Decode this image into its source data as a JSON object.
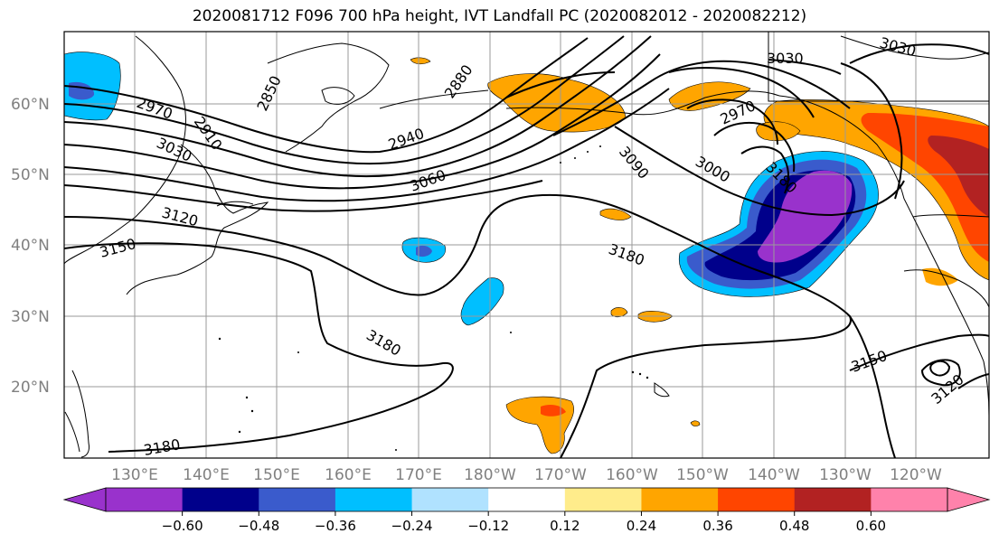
{
  "title": "2020081712 F096 700 hPa height, IVT Landfall PC (2020082012 - 2020082212)",
  "map": {
    "lat_labels": [
      "60°N",
      "50°N",
      "40°N",
      "30°N",
      "20°N"
    ],
    "lon_labels": [
      "130°E",
      "140°E",
      "150°E",
      "160°E",
      "170°E",
      "180°W",
      "170°W",
      "160°W",
      "150°W",
      "140°W",
      "130°W",
      "120°W"
    ],
    "contour_labels": [
      "2970",
      "2910",
      "2850",
      "2880",
      "2940",
      "3030",
      "3060",
      "3120",
      "3150",
      "3180",
      "3090",
      "3000",
      "2970",
      "3030",
      "3030",
      "3180",
      "3180",
      "3180",
      "3150",
      "3120"
    ],
    "colors": {
      "fill_strong_neg": "#9932cc",
      "fill_neg2": "#00008b",
      "fill_neg3": "#3a5bcc",
      "fill_neg4": "#00bfff",
      "fill_neg5": "#b0e2ff",
      "fill_pos1": "#ffec8b",
      "fill_pos2": "#ffa500",
      "fill_pos3": "#ff4500",
      "fill_pos4": "#b22222",
      "fill_pos5": "#ff82ab"
    }
  },
  "colorbar": {
    "ticks": [
      "−0.60",
      "−0.48",
      "−0.36",
      "−0.24",
      "−0.12",
      "0.12",
      "0.24",
      "0.36",
      "0.48",
      "0.60"
    ],
    "colors": [
      "#9932cc",
      "#00008b",
      "#3a5bcc",
      "#00bfff",
      "#b0e2ff",
      "#ffffff",
      "#ffec8b",
      "#ffa500",
      "#ff4500",
      "#b22222",
      "#ff82ab"
    ]
  }
}
